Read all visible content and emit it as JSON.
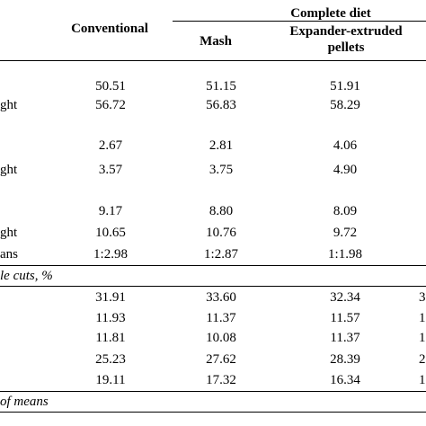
{
  "header": {
    "group": "Complete diet",
    "col_conventional": "Conventional",
    "col_mash": "Mash",
    "col_pellets_line1": "Expander-extruded",
    "col_pellets_line2": "pellets"
  },
  "rows": [
    {
      "label": "",
      "c1": "50.51",
      "c2": "51.15",
      "c3": "51.91",
      "c4": ""
    },
    {
      "label": "ght",
      "c1": "56.72",
      "c2": "56.83",
      "c3": "58.29",
      "c4": ""
    },
    {
      "label": "",
      "c1": "2.67",
      "c2": "2.81",
      "c3": "4.06",
      "c4": ""
    },
    {
      "label": "ght",
      "c1": "3.57",
      "c2": "3.75",
      "c3": "4.90",
      "c4": ""
    },
    {
      "label": "",
      "c1": "9.17",
      "c2": "8.80",
      "c3": "8.09",
      "c4": ""
    },
    {
      "label": "ght",
      "c1": "10.65",
      "c2": "10.76",
      "c3": "9.72",
      "c4": ""
    },
    {
      "label": "ans",
      "c1": "1:2.98",
      "c2": "1:2.87",
      "c3": "1:1.98",
      "c4": ""
    },
    {
      "label": "",
      "c1": "31.91",
      "c2": "33.60",
      "c3": "32.34",
      "c4": "3"
    },
    {
      "label": "",
      "c1": "11.93",
      "c2": "11.37",
      "c3": "11.57",
      "c4": "1"
    },
    {
      "label": "",
      "c1": "11.81",
      "c2": "10.08",
      "c3": "11.37",
      "c4": "1"
    },
    {
      "label": "",
      "c1": "25.23",
      "c2": "27.62",
      "c3": "28.39",
      "c4": "2"
    },
    {
      "label": "",
      "c1": "19.11",
      "c2": "17.32",
      "c3": "16.34",
      "c4": "1"
    }
  ],
  "section_cuts": "le cuts, %",
  "footnote": "of means"
}
